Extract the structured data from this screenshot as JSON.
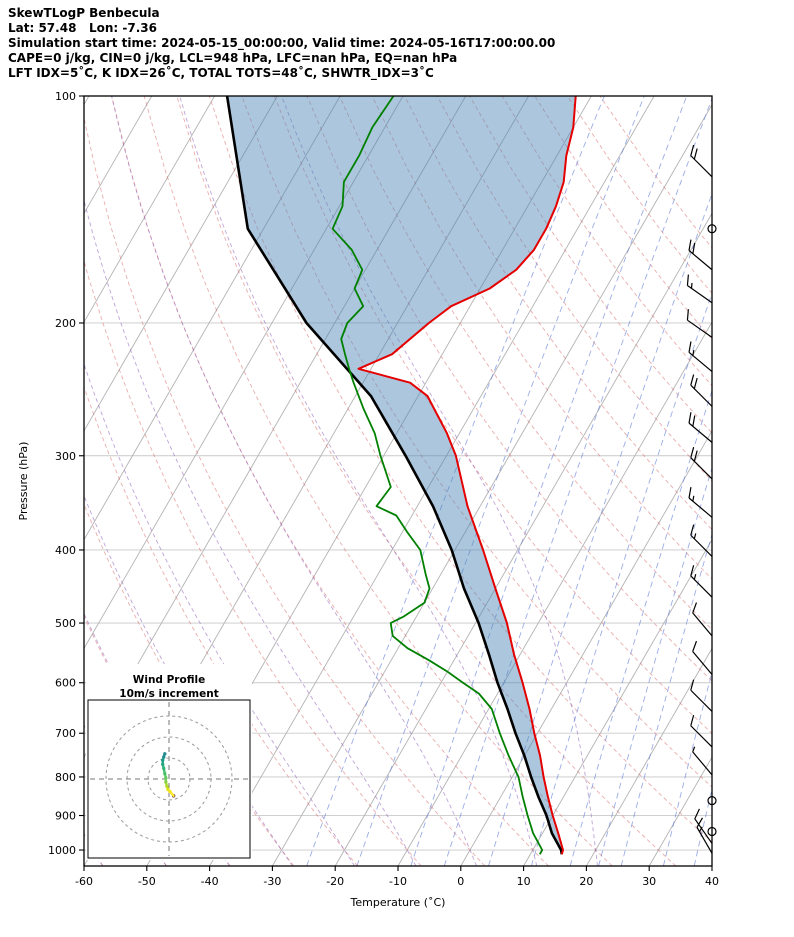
{
  "header": {
    "title": "SkewTLogP Benbecula",
    "latlon": "Lat: 57.48   Lon: -7.36",
    "sim_time": "Simulation start time: 2024-05-15_00:00:00, Valid time: 2024-05-16T17:00:00.00",
    "indices1": "CAPE=0 j/kg, CIN=0 j/kg, LCL=948 hPa, LFC=nan hPa, EQ=nan hPa",
    "indices2": "LFT IDX=5˚C, K IDX=26˚C, TOTAL TOTS=48˚C, SHWTR_IDX=3˚C"
  },
  "chart_data": {
    "type": "line",
    "title": "SkewTLogP Benbecula",
    "xlabel": "Temperature (˚C)",
    "ylabel": "Pressure (hPa)",
    "xlim": [
      -60,
      40
    ],
    "p_range": [
      100,
      1050
    ],
    "skew_deg": 30,
    "x_ticks": [
      -60,
      -50,
      -40,
      -30,
      -20,
      -10,
      0,
      10,
      20,
      30,
      40
    ],
    "p_ticks": [
      100,
      200,
      300,
      400,
      500,
      600,
      700,
      800,
      900,
      1000
    ],
    "series": [
      {
        "name": "parcel",
        "color": "#000000",
        "width": 2.6,
        "points": [
          [
            1013,
            15
          ],
          [
            1000,
            14.5
          ],
          [
            950,
            11.5
          ],
          [
            900,
            9
          ],
          [
            850,
            6
          ],
          [
            800,
            3
          ],
          [
            750,
            0
          ],
          [
            700,
            -3.5
          ],
          [
            650,
            -7
          ],
          [
            600,
            -11
          ],
          [
            550,
            -15
          ],
          [
            500,
            -19.5
          ],
          [
            450,
            -25
          ],
          [
            400,
            -30.5
          ],
          [
            350,
            -37.5
          ],
          [
            300,
            -46.5
          ],
          [
            250,
            -57.5
          ],
          [
            200,
            -74.5
          ],
          [
            150,
            -92.5
          ],
          [
            100,
            -108
          ]
        ]
      },
      {
        "name": "temperature",
        "color": "#e50000",
        "width": 2,
        "points": [
          [
            1013,
            15
          ],
          [
            1000,
            14.8
          ],
          [
            950,
            12.5
          ],
          [
            900,
            10
          ],
          [
            850,
            7.5
          ],
          [
            800,
            5
          ],
          [
            750,
            2.5
          ],
          [
            700,
            -0.5
          ],
          [
            650,
            -3.5
          ],
          [
            600,
            -7
          ],
          [
            550,
            -11
          ],
          [
            500,
            -15
          ],
          [
            450,
            -20
          ],
          [
            400,
            -25.5
          ],
          [
            350,
            -32
          ],
          [
            300,
            -38.5
          ],
          [
            280,
            -42
          ],
          [
            250,
            -48.5
          ],
          [
            240,
            -52.5
          ],
          [
            230,
            -62
          ],
          [
            220,
            -58
          ],
          [
            200,
            -55
          ],
          [
            190,
            -53
          ],
          [
            180,
            -48.5
          ],
          [
            170,
            -46
          ],
          [
            160,
            -45
          ],
          [
            150,
            -45
          ],
          [
            140,
            -45.5
          ],
          [
            130,
            -46.5
          ],
          [
            120,
            -48.5
          ],
          [
            110,
            -50
          ],
          [
            100,
            -52.5
          ]
        ]
      },
      {
        "name": "dewpoint",
        "color": "#008000",
        "width": 1.8,
        "points": [
          [
            1013,
            11.5
          ],
          [
            1000,
            11.5
          ],
          [
            950,
            8.5
          ],
          [
            900,
            6
          ],
          [
            850,
            3.5
          ],
          [
            800,
            1
          ],
          [
            750,
            -2.5
          ],
          [
            700,
            -6
          ],
          [
            650,
            -9.5
          ],
          [
            620,
            -13
          ],
          [
            600,
            -16.5
          ],
          [
            580,
            -20
          ],
          [
            560,
            -24
          ],
          [
            540,
            -28.5
          ],
          [
            520,
            -32
          ],
          [
            500,
            -33.5
          ],
          [
            490,
            -32
          ],
          [
            470,
            -30
          ],
          [
            450,
            -30.5
          ],
          [
            430,
            -32.5
          ],
          [
            400,
            -35.5
          ],
          [
            380,
            -39
          ],
          [
            360,
            -42.5
          ],
          [
            350,
            -46.5
          ],
          [
            330,
            -46
          ],
          [
            300,
            -50.5
          ],
          [
            280,
            -53.5
          ],
          [
            260,
            -57.5
          ],
          [
            240,
            -61.5
          ],
          [
            230,
            -63.5
          ],
          [
            220,
            -65.5
          ],
          [
            210,
            -67.5
          ],
          [
            200,
            -68
          ],
          [
            190,
            -67
          ],
          [
            180,
            -70
          ],
          [
            170,
            -70.5
          ],
          [
            160,
            -74
          ],
          [
            150,
            -79
          ],
          [
            140,
            -79.5
          ],
          [
            130,
            -81.5
          ],
          [
            120,
            -81.5
          ],
          [
            110,
            -82
          ],
          [
            100,
            -81.5
          ]
        ]
      }
    ],
    "shading": {
      "between": [
        "parcel",
        "temperature"
      ],
      "color": "#4682b4",
      "opacity": 0.45
    },
    "background": {
      "isotherms": {
        "start": -160,
        "end": 40,
        "step": 10,
        "color": "#b3b3b3"
      },
      "dry_adiabats": {
        "start": -60,
        "end": 160,
        "step": 10,
        "color": "#d96a6a"
      },
      "moist_adiabats": {
        "values": [
          -60,
          -50,
          -40,
          -30,
          -20,
          -10,
          0,
          10,
          20
        ],
        "color": "#9467bd"
      },
      "mixing_ratio_g_kg": {
        "values": [
          0.5,
          1,
          2,
          3,
          5,
          8,
          12,
          16,
          20,
          30,
          40
        ],
        "color": "#5a76d6"
      },
      "pressure_grid": {
        "start": 100,
        "end": 1000,
        "step": 100,
        "color": "#c9c9c9"
      }
    },
    "wind_barbs": [
      {
        "p": 1010,
        "spd_kt": 15,
        "dir_deg": 330
      },
      {
        "p": 980,
        "spd_kt": 10,
        "dir_deg": 325
      },
      {
        "p": 945,
        "spd_kt": 0,
        "dir_deg": 0
      },
      {
        "p": 860,
        "spd_kt": 0,
        "dir_deg": 0
      },
      {
        "p": 795,
        "spd_kt": 5,
        "dir_deg": 320
      },
      {
        "p": 730,
        "spd_kt": 8,
        "dir_deg": 315
      },
      {
        "p": 655,
        "spd_kt": 10,
        "dir_deg": 315
      },
      {
        "p": 585,
        "spd_kt": 10,
        "dir_deg": 320
      },
      {
        "p": 520,
        "spd_kt": 12,
        "dir_deg": 320
      },
      {
        "p": 462,
        "spd_kt": 15,
        "dir_deg": 315
      },
      {
        "p": 408,
        "spd_kt": 15,
        "dir_deg": 315
      },
      {
        "p": 362,
        "spd_kt": 15,
        "dir_deg": 310
      },
      {
        "p": 322,
        "spd_kt": 18,
        "dir_deg": 315
      },
      {
        "p": 288,
        "spd_kt": 20,
        "dir_deg": 310
      },
      {
        "p": 258,
        "spd_kt": 18,
        "dir_deg": 315
      },
      {
        "p": 232,
        "spd_kt": 15,
        "dir_deg": 310
      },
      {
        "p": 209,
        "spd_kt": 12,
        "dir_deg": 305
      },
      {
        "p": 188,
        "spd_kt": 15,
        "dir_deg": 305
      },
      {
        "p": 170,
        "spd_kt": 18,
        "dir_deg": 310
      },
      {
        "p": 150,
        "spd_kt": 0,
        "dir_deg": 0
      },
      {
        "p": 128,
        "spd_kt": 22,
        "dir_deg": 315
      }
    ]
  },
  "hodograph": {
    "title": "Wind Profile",
    "subtitle": "10m/s increment",
    "ring_interval_ms": 10,
    "rings_ms": [
      10,
      20,
      30
    ],
    "trace": [
      {
        "u": 2.2,
        "v": -8,
        "color": "#440154"
      },
      {
        "u": 0.5,
        "v": -6,
        "color": "#fde725"
      },
      {
        "u": -0.5,
        "v": -5,
        "color": "#f1e51d"
      },
      {
        "u": -1,
        "v": -3.5,
        "color": "#d8e219"
      },
      {
        "u": -1.5,
        "v": -1.5,
        "color": "#addc30"
      },
      {
        "u": -1.5,
        "v": 0.5,
        "color": "#7ad151"
      },
      {
        "u": -2,
        "v": 2.5,
        "color": "#5ec962"
      },
      {
        "u": -2.5,
        "v": 5,
        "color": "#44bf70"
      },
      {
        "u": -3,
        "v": 7,
        "color": "#2db27d"
      },
      {
        "u": -3,
        "v": 9,
        "color": "#21a585"
      },
      {
        "u": -2.5,
        "v": 10.5,
        "color": "#1f988b"
      },
      {
        "u": -2,
        "v": 12,
        "color": "#238a8d"
      }
    ]
  }
}
